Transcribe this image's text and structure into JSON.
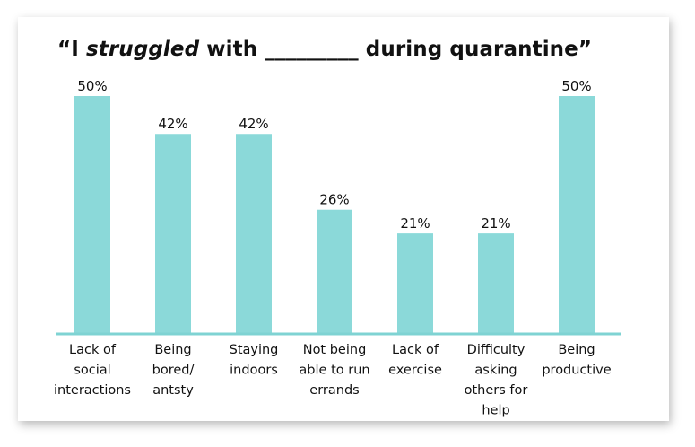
{
  "title": {
    "prefix": "“I ",
    "emphasis": "struggled",
    "suffix": " with _________ during quarantine”"
  },
  "chart_data": {
    "type": "bar",
    "categories": [
      [
        "Lack of",
        "social",
        "interactions"
      ],
      [
        "Being",
        "bored/",
        "antsty"
      ],
      [
        "Staying",
        "indoors"
      ],
      [
        "Not being",
        "able to run",
        "errands"
      ],
      [
        "Lack of",
        "exercise"
      ],
      [
        "Difficulty",
        "asking",
        "others for",
        "help"
      ],
      [
        "Being",
        "productive"
      ]
    ],
    "values": [
      50,
      42,
      42,
      26,
      21,
      21,
      50
    ],
    "value_suffix": "%",
    "ylim": [
      0,
      50
    ],
    "grid": false,
    "bar_color": "#8bd9d9",
    "baseline_color": "#7fd3d3",
    "label_color": "#111111"
  }
}
